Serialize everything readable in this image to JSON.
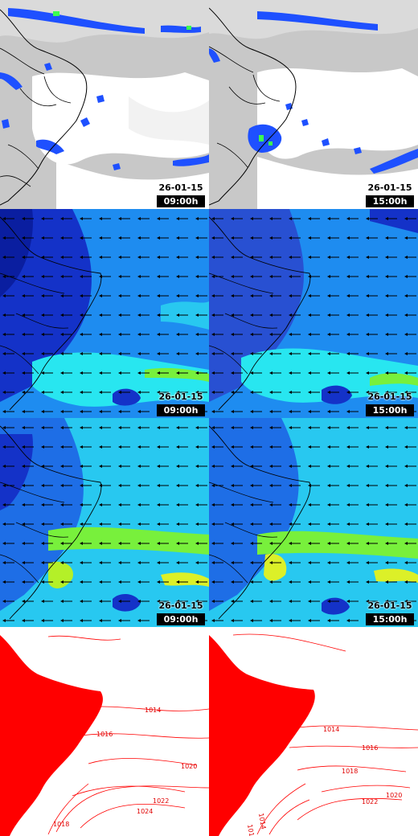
{
  "colors": {
    "satellite_cloud": "#c8c8c8",
    "satellite_clear": "#ffffff",
    "precip_blue": "#1e50ff",
    "precip_green": "#3cff50",
    "wind_dark": "#1432c8",
    "wind_mid": "#1e8cf0",
    "wind_light": "#28e6f0",
    "wind_strong": "#78f03c",
    "isobar": "#ff0000",
    "border": "#000000"
  },
  "panels": [
    {
      "row": "satellite",
      "date": "26-01-15",
      "time": "09:00h"
    },
    {
      "row": "satellite",
      "date": "26-01-15",
      "time": "15:00h"
    },
    {
      "row": "wind-upper",
      "date": "26-01-15",
      "time": "09:00h"
    },
    {
      "row": "wind-upper",
      "date": "26-01-15",
      "time": "15:00h"
    },
    {
      "row": "wind-lower",
      "date": "26-01-15",
      "time": "09:00h"
    },
    {
      "row": "wind-lower",
      "date": "26-01-15",
      "time": "15:00h"
    },
    {
      "row": "pressure",
      "date": "",
      "time": ""
    },
    {
      "row": "pressure",
      "date": "",
      "time": ""
    }
  ],
  "isobar_labels": {
    "left": [
      "1014",
      "1016",
      "1020",
      "1022",
      "1024",
      "1018"
    ],
    "right": [
      "1014",
      "1016",
      "1018",
      "1020",
      "1022",
      "1014",
      "1016"
    ]
  },
  "icons": [
    "wind-arrow-icon"
  ]
}
